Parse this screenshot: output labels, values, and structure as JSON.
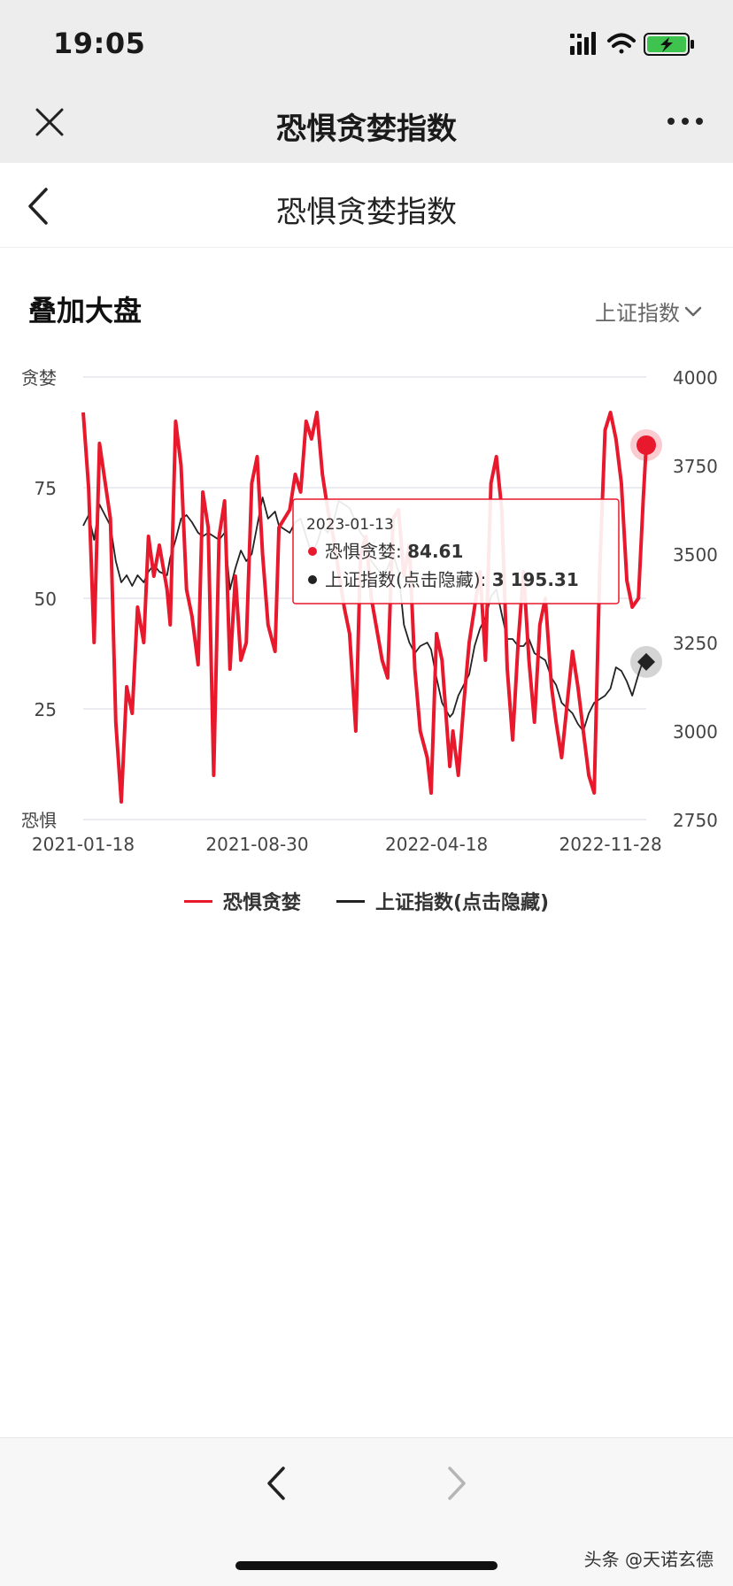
{
  "status_bar": {
    "time": "19:05"
  },
  "nav": {
    "title": "恐惧贪婪指数"
  },
  "page": {
    "title": "恐惧贪婪指数"
  },
  "section": {
    "title": "叠加大盘"
  },
  "index_selector": {
    "selected": "上证指数"
  },
  "colors": {
    "fear_greed": "#e8192c",
    "sse": "#222222"
  },
  "chart_data": {
    "type": "line",
    "x_ticks": [
      "2021-01-18",
      "2021-08-30",
      "2022-04-18",
      "2022-11-28"
    ],
    "left_axis": {
      "ticks": [
        "贪婪",
        "75",
        "50",
        "25",
        "恐惧"
      ],
      "range": [
        0,
        100
      ]
    },
    "right_axis": {
      "ticks": [
        "4000",
        "3750",
        "3500",
        "3250",
        "3000",
        "2750"
      ],
      "range": [
        2750,
        4000
      ]
    },
    "series": [
      {
        "name": "恐惧贪婪",
        "axis": "left",
        "x": [
          "2021-01-18",
          "2021-01-25",
          "2021-02-01",
          "2021-02-08",
          "2021-02-22",
          "2021-03-01",
          "2021-03-08",
          "2021-03-15",
          "2021-03-22",
          "2021-03-29",
          "2021-04-06",
          "2021-04-12",
          "2021-04-19",
          "2021-04-26",
          "2021-05-06",
          "2021-05-10",
          "2021-05-17",
          "2021-05-24",
          "2021-05-31",
          "2021-06-07",
          "2021-06-15",
          "2021-06-21",
          "2021-06-28",
          "2021-07-05",
          "2021-07-12",
          "2021-07-19",
          "2021-07-26",
          "2021-08-02",
          "2021-08-09",
          "2021-08-16",
          "2021-08-23",
          "2021-08-30",
          "2021-09-06",
          "2021-09-13",
          "2021-09-22",
          "2021-09-27",
          "2021-10-11",
          "2021-10-18",
          "2021-10-25",
          "2021-11-01",
          "2021-11-08",
          "2021-11-15",
          "2021-11-22",
          "2021-11-29",
          "2021-12-06",
          "2021-12-13",
          "2021-12-20",
          "2021-12-27",
          "2022-01-04",
          "2022-01-10",
          "2022-01-17",
          "2022-01-24",
          "2022-02-07",
          "2022-02-14",
          "2022-02-21",
          "2022-02-28",
          "2022-03-07",
          "2022-03-14",
          "2022-03-21",
          "2022-03-28",
          "2022-04-06",
          "2022-04-11",
          "2022-04-18",
          "2022-04-25",
          "2022-05-05",
          "2022-05-09",
          "2022-05-16",
          "2022-05-23",
          "2022-05-30",
          "2022-06-06",
          "2022-06-13",
          "2022-06-20",
          "2022-06-27",
          "2022-07-04",
          "2022-07-11",
          "2022-07-18",
          "2022-07-25",
          "2022-08-01",
          "2022-08-08",
          "2022-08-15",
          "2022-08-22",
          "2022-08-29",
          "2022-09-05",
          "2022-09-13",
          "2022-09-19",
          "2022-09-26",
          "2022-10-10",
          "2022-10-17",
          "2022-10-24",
          "2022-10-31",
          "2022-11-07",
          "2022-11-14",
          "2022-11-21",
          "2022-11-28",
          "2022-12-05",
          "2022-12-12",
          "2022-12-19",
          "2022-12-26",
          "2023-01-03",
          "2023-01-09",
          "2023-01-13"
        ],
        "values": [
          92,
          75,
          40,
          85,
          68,
          22,
          4,
          30,
          24,
          48,
          40,
          64,
          55,
          62,
          52,
          44,
          90,
          80,
          52,
          46,
          35,
          74,
          66,
          10,
          64,
          72,
          34,
          55,
          36,
          40,
          76,
          82,
          60,
          44,
          38,
          66,
          70,
          78,
          74,
          90,
          86,
          92,
          78,
          70,
          64,
          56,
          48,
          42,
          20,
          60,
          64,
          50,
          36,
          32,
          68,
          70,
          55,
          62,
          34,
          20,
          14,
          6,
          42,
          36,
          12,
          20,
          10,
          26,
          40,
          48,
          56,
          36,
          76,
          82,
          70,
          34,
          18,
          40,
          56,
          36,
          22,
          44,
          50,
          30,
          22,
          14,
          38,
          30,
          20,
          10,
          6,
          56,
          88,
          92,
          86,
          76,
          54,
          48,
          50,
          72,
          84.61
        ]
      },
      {
        "name": "上证指数(点击隐藏)",
        "axis": "right",
        "x": [
          "2021-01-18",
          "2021-01-25",
          "2021-02-01",
          "2021-02-08",
          "2021-02-22",
          "2021-03-01",
          "2021-03-08",
          "2021-03-15",
          "2021-03-22",
          "2021-03-29",
          "2021-04-06",
          "2021-04-12",
          "2021-04-19",
          "2021-04-26",
          "2021-05-06",
          "2021-05-10",
          "2021-05-17",
          "2021-05-24",
          "2021-05-31",
          "2021-06-07",
          "2021-06-15",
          "2021-06-21",
          "2021-06-28",
          "2021-07-05",
          "2021-07-12",
          "2021-07-19",
          "2021-07-26",
          "2021-08-02",
          "2021-08-09",
          "2021-08-16",
          "2021-08-23",
          "2021-08-30",
          "2021-09-06",
          "2021-09-13",
          "2021-09-22",
          "2021-09-27",
          "2021-10-11",
          "2021-10-18",
          "2021-10-25",
          "2021-11-01",
          "2021-11-08",
          "2021-11-15",
          "2021-11-22",
          "2021-11-29",
          "2021-12-06",
          "2021-12-13",
          "2021-12-20",
          "2021-12-27",
          "2022-01-04",
          "2022-01-10",
          "2022-01-17",
          "2022-01-24",
          "2022-02-07",
          "2022-02-14",
          "2022-02-21",
          "2022-02-28",
          "2022-03-07",
          "2022-03-14",
          "2022-03-21",
          "2022-03-28",
          "2022-04-06",
          "2022-04-11",
          "2022-04-18",
          "2022-04-25",
          "2022-05-05",
          "2022-05-09",
          "2022-05-16",
          "2022-05-23",
          "2022-05-30",
          "2022-06-06",
          "2022-06-13",
          "2022-06-20",
          "2022-06-27",
          "2022-07-04",
          "2022-07-11",
          "2022-07-18",
          "2022-07-25",
          "2022-08-01",
          "2022-08-08",
          "2022-08-15",
          "2022-08-22",
          "2022-08-29",
          "2022-09-05",
          "2022-09-13",
          "2022-09-19",
          "2022-09-26",
          "2022-10-10",
          "2022-10-17",
          "2022-10-24",
          "2022-10-31",
          "2022-11-07",
          "2022-11-14",
          "2022-11-21",
          "2022-11-28",
          "2022-12-05",
          "2022-12-12",
          "2022-12-19",
          "2022-12-26",
          "2023-01-03",
          "2023-01-09",
          "2023-01-13"
        ],
        "values": [
          3580,
          3610,
          3540,
          3640,
          3580,
          3480,
          3420,
          3440,
          3410,
          3440,
          3420,
          3450,
          3470,
          3450,
          3440,
          3490,
          3540,
          3600,
          3610,
          3590,
          3560,
          3550,
          3560,
          3550,
          3540,
          3560,
          3400,
          3460,
          3510,
          3480,
          3500,
          3580,
          3660,
          3600,
          3620,
          3580,
          3560,
          3590,
          3600,
          3550,
          3500,
          3530,
          3580,
          3560,
          3590,
          3650,
          3640,
          3630,
          3590,
          3560,
          3540,
          3480,
          3440,
          3460,
          3500,
          3450,
          3300,
          3250,
          3220,
          3240,
          3250,
          3230,
          3150,
          3080,
          3040,
          3050,
          3100,
          3130,
          3160,
          3240,
          3290,
          3320,
          3380,
          3400,
          3330,
          3260,
          3260,
          3240,
          3240,
          3260,
          3220,
          3210,
          3200,
          3150,
          3130,
          3080,
          3050,
          3020,
          3000,
          3050,
          3080,
          3090,
          3100,
          3120,
          3180,
          3170,
          3140,
          3100,
          3160,
          3200,
          3195.31
        ]
      }
    ],
    "tooltip": {
      "date": "2023-01-13",
      "rows": [
        {
          "label": "恐惧贪婪: ",
          "value": "84.61"
        },
        {
          "label": "上证指数(点击隐藏): ",
          "value": "3 195.31"
        }
      ]
    },
    "legend_position": "bottom-center",
    "grid": true
  },
  "footer": {
    "watermark": "头条 @天诺玄德"
  }
}
